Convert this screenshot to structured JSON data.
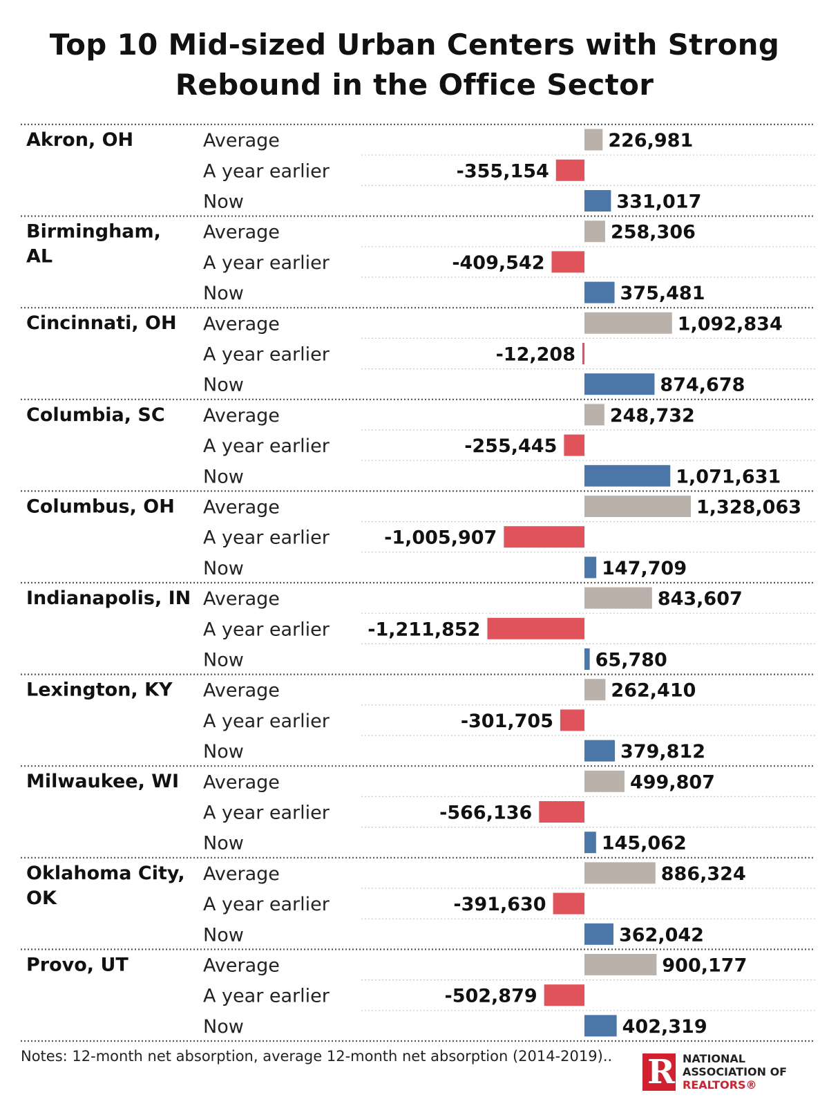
{
  "title_lines": [
    "Top 10 Mid-sized Urban Centers with Strong",
    "Rebound in the Office Sector"
  ],
  "notes": "Notes: 12-month net absorption, average 12-month net absorption (2014-2019)..",
  "logo": {
    "lines": [
      "NATIONAL",
      "ASSOCIATION OF",
      "REALTORS®"
    ],
    "mark": "R"
  },
  "colors": {
    "average": "#bbb1ab",
    "year_earlier": "#e0535b",
    "now": "#4b76a8"
  },
  "chart_data": {
    "type": "bar",
    "orientation": "horizontal",
    "title": "Top 10 Mid-sized Urban Centers with Strong Rebound in the Office Sector",
    "series_labels": [
      "Average",
      "A year earlier",
      "Now"
    ],
    "groups": [
      {
        "name": "Akron, OH",
        "name_lines": [
          "Akron, OH"
        ],
        "values": [
          226981,
          -355154,
          331017
        ],
        "labels": [
          "226,981",
          "-355,154",
          "331,017"
        ]
      },
      {
        "name": "Birmingham, AL",
        "name_lines": [
          "Birmingham,",
          "AL"
        ],
        "values": [
          258306,
          -409542,
          375481
        ],
        "labels": [
          "258,306",
          "-409,542",
          "375,481"
        ]
      },
      {
        "name": "Cincinnati, OH",
        "name_lines": [
          "Cincinnati, OH"
        ],
        "values": [
          1092834,
          -12208,
          874678
        ],
        "labels": [
          "1,092,834",
          "-12,208",
          "874,678"
        ]
      },
      {
        "name": "Columbia, SC",
        "name_lines": [
          "Columbia, SC"
        ],
        "values": [
          248732,
          -255445,
          1071631
        ],
        "labels": [
          "248,732",
          "-255,445",
          "1,071,631"
        ]
      },
      {
        "name": "Columbus, OH",
        "name_lines": [
          "Columbus, OH"
        ],
        "values": [
          1328063,
          -1005907,
          147709
        ],
        "labels": [
          "1,328,063",
          "-1,005,907",
          "147,709"
        ]
      },
      {
        "name": "Indianapolis, IN",
        "name_lines": [
          "Indianapolis, IN"
        ],
        "values": [
          843607,
          -1211852,
          65780
        ],
        "labels": [
          "843,607",
          "-1,211,852",
          "65,780"
        ]
      },
      {
        "name": "Lexington, KY",
        "name_lines": [
          "Lexington, KY"
        ],
        "values": [
          262410,
          -301705,
          379812
        ],
        "labels": [
          "262,410",
          "-301,705",
          "379,812"
        ]
      },
      {
        "name": "Milwaukee, WI",
        "name_lines": [
          "Milwaukee, WI"
        ],
        "values": [
          499807,
          -566136,
          145062
        ],
        "labels": [
          "499,807",
          "-566,136",
          "145,062"
        ]
      },
      {
        "name": "Oklahoma City, OK",
        "name_lines": [
          "Oklahoma City,",
          "OK"
        ],
        "values": [
          886324,
          -391630,
          362042
        ],
        "labels": [
          "886,324",
          "-391,630",
          "362,042"
        ]
      },
      {
        "name": "Provo, UT",
        "name_lines": [
          "Provo, UT"
        ],
        "values": [
          900177,
          -502879,
          402319
        ],
        "labels": [
          "900,177",
          "-502,879",
          "402,319"
        ]
      }
    ],
    "xlim": [
      -1211852,
      1328063
    ],
    "grid": false
  }
}
